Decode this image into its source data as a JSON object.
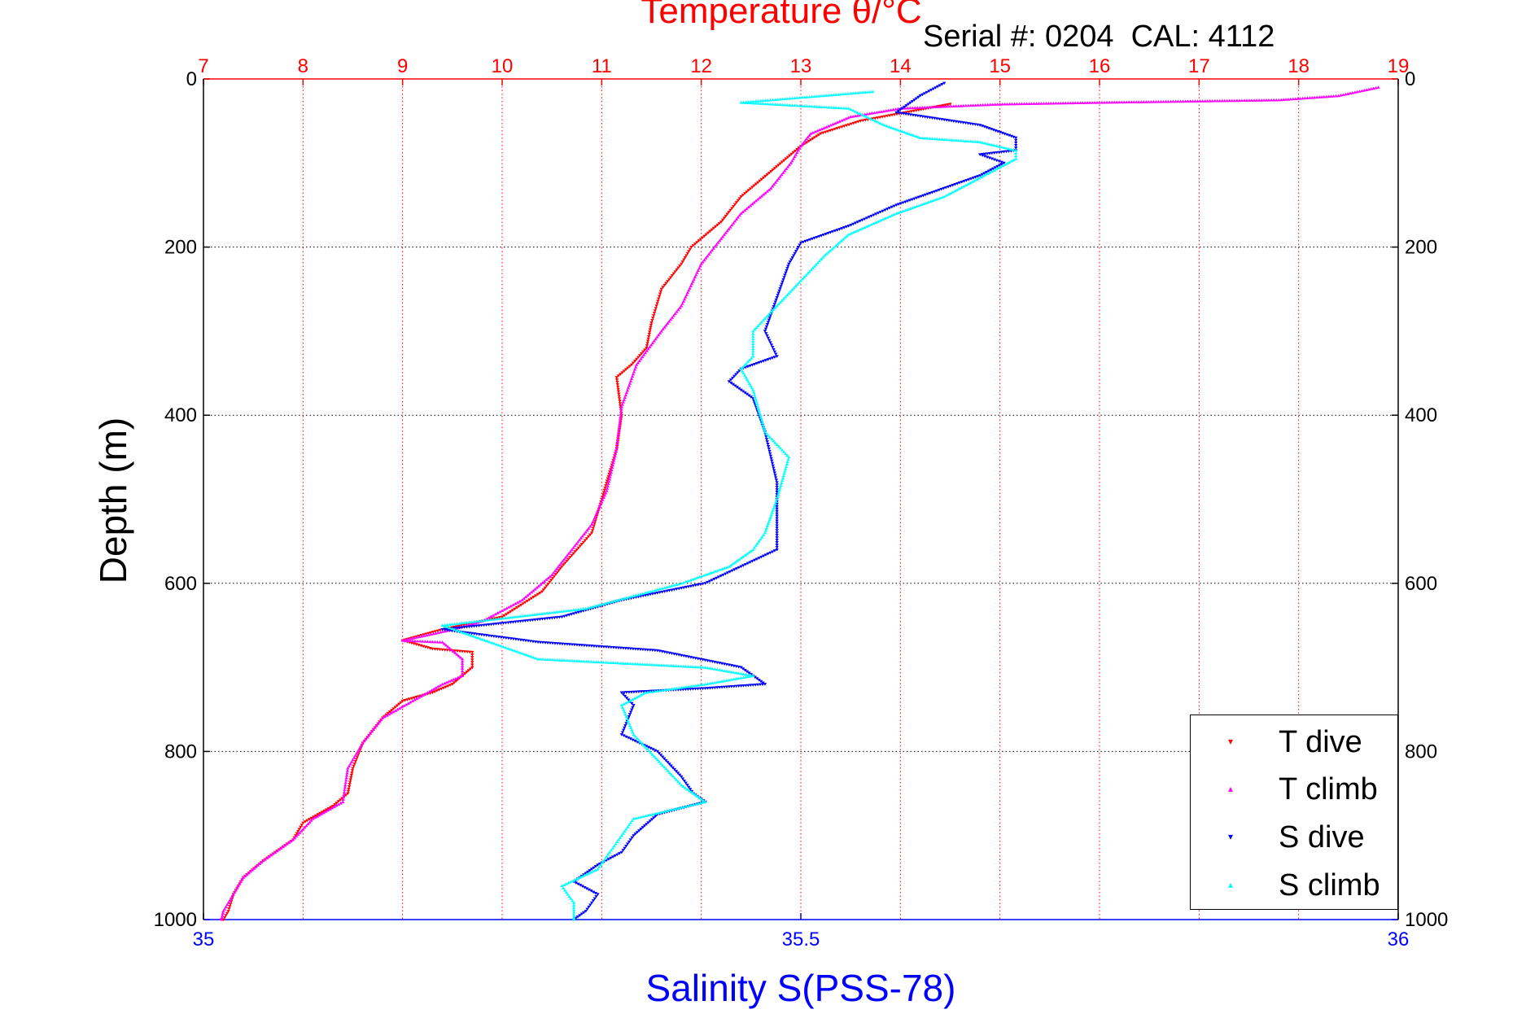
{
  "chart_data": {
    "type": "scatter",
    "title": "Temperature θ/°C",
    "subtitle": "Serial #: 0204  CAL: 4112",
    "ylabel": "Depth (m)",
    "xlabel_bottom": "Salinity S(PSS-78)",
    "y_axis": {
      "range": [
        0,
        1000
      ],
      "reversed": true,
      "ticks": [
        "0",
        "200",
        "400",
        "600",
        "800",
        "1000"
      ],
      "tick_values": [
        0,
        200,
        400,
        600,
        800,
        1000
      ]
    },
    "x_axis_top": {
      "label": "Temperature θ/°C",
      "range": [
        7,
        19
      ],
      "ticks": [
        "7",
        "8",
        "9",
        "10",
        "11",
        "12",
        "13",
        "14",
        "15",
        "16",
        "17",
        "18",
        "19"
      ],
      "tick_values": [
        7,
        8,
        9,
        10,
        11,
        12,
        13,
        14,
        15,
        16,
        17,
        18,
        19
      ],
      "color": "#ff0000"
    },
    "x_axis_bottom": {
      "label": "Salinity S(PSS-78)",
      "range": [
        35,
        36
      ],
      "ticks": [
        "35",
        "35.5",
        "36"
      ],
      "tick_values": [
        35,
        35.5,
        36
      ],
      "color": "#0000ff"
    },
    "grid": true,
    "legend_position": "bottom-right",
    "series": [
      {
        "name": "T dive",
        "axis": "temperature",
        "color": "#ff0000",
        "marker": "triangle-down",
        "points": [
          [
            14.5,
            30
          ],
          [
            13.6,
            50
          ],
          [
            13.2,
            65
          ],
          [
            13.0,
            80
          ],
          [
            12.7,
            110
          ],
          [
            12.4,
            140
          ],
          [
            12.2,
            170
          ],
          [
            11.9,
            200
          ],
          [
            11.8,
            220
          ],
          [
            11.6,
            250
          ],
          [
            11.5,
            290
          ],
          [
            11.45,
            320
          ],
          [
            11.3,
            340
          ],
          [
            11.15,
            355
          ],
          [
            11.2,
            400
          ],
          [
            11.15,
            440
          ],
          [
            11.0,
            500
          ],
          [
            10.9,
            540
          ],
          [
            10.6,
            580
          ],
          [
            10.4,
            610
          ],
          [
            10.0,
            640
          ],
          [
            9.4,
            655
          ],
          [
            9.0,
            668
          ],
          [
            9.3,
            678
          ],
          [
            9.7,
            682
          ],
          [
            9.7,
            700
          ],
          [
            9.5,
            720
          ],
          [
            9.3,
            730
          ],
          [
            9.0,
            740
          ],
          [
            8.8,
            760
          ],
          [
            8.6,
            790
          ],
          [
            8.5,
            820
          ],
          [
            8.45,
            850
          ],
          [
            8.3,
            865
          ],
          [
            8.0,
            885
          ],
          [
            7.9,
            905
          ],
          [
            7.6,
            930
          ],
          [
            7.4,
            950
          ],
          [
            7.3,
            970
          ],
          [
            7.25,
            990
          ],
          [
            7.2,
            1000
          ]
        ]
      },
      {
        "name": "T climb",
        "axis": "temperature",
        "color": "#ff00ff",
        "marker": "triangle-up",
        "points": [
          [
            18.8,
            10
          ],
          [
            18.4,
            20
          ],
          [
            17.8,
            25
          ],
          [
            16.0,
            28
          ],
          [
            15.0,
            30
          ],
          [
            14.0,
            35
          ],
          [
            13.5,
            45
          ],
          [
            13.1,
            65
          ],
          [
            13.0,
            80
          ],
          [
            12.9,
            100
          ],
          [
            12.7,
            130
          ],
          [
            12.4,
            160
          ],
          [
            12.2,
            190
          ],
          [
            12.0,
            220
          ],
          [
            11.8,
            270
          ],
          [
            11.6,
            300
          ],
          [
            11.35,
            340
          ],
          [
            11.2,
            390
          ],
          [
            11.15,
            440
          ],
          [
            11.05,
            490
          ],
          [
            10.9,
            530
          ],
          [
            10.7,
            560
          ],
          [
            10.5,
            590
          ],
          [
            10.2,
            620
          ],
          [
            9.8,
            645
          ],
          [
            9.5,
            655
          ],
          [
            9.0,
            668
          ],
          [
            9.4,
            670
          ],
          [
            9.6,
            690
          ],
          [
            9.6,
            710
          ],
          [
            9.4,
            720
          ],
          [
            9.1,
            740
          ],
          [
            8.8,
            760
          ],
          [
            8.6,
            790
          ],
          [
            8.45,
            820
          ],
          [
            8.4,
            860
          ],
          [
            8.1,
            880
          ],
          [
            7.9,
            905
          ],
          [
            7.6,
            930
          ],
          [
            7.4,
            950
          ],
          [
            7.3,
            970
          ],
          [
            7.2,
            990
          ],
          [
            7.18,
            1000
          ]
        ]
      },
      {
        "name": "S dive",
        "axis": "salinity",
        "color": "#0000ff",
        "marker": "triangle-down",
        "points": [
          [
            35.62,
            5
          ],
          [
            35.6,
            20
          ],
          [
            35.58,
            40
          ],
          [
            35.65,
            55
          ],
          [
            35.68,
            70
          ],
          [
            35.68,
            85
          ],
          [
            35.65,
            90
          ],
          [
            35.67,
            100
          ],
          [
            35.65,
            115
          ],
          [
            35.61,
            135
          ],
          [
            35.58,
            150
          ],
          [
            35.54,
            175
          ],
          [
            35.5,
            195
          ],
          [
            35.49,
            220
          ],
          [
            35.48,
            260
          ],
          [
            35.47,
            300
          ],
          [
            35.48,
            330
          ],
          [
            35.45,
            345
          ],
          [
            35.44,
            360
          ],
          [
            35.46,
            380
          ],
          [
            35.47,
            420
          ],
          [
            35.48,
            480
          ],
          [
            35.48,
            520
          ],
          [
            35.48,
            560
          ],
          [
            35.45,
            580
          ],
          [
            35.42,
            600
          ],
          [
            35.35,
            620
          ],
          [
            35.3,
            640
          ],
          [
            35.2,
            655
          ],
          [
            35.28,
            670
          ],
          [
            35.38,
            680
          ],
          [
            35.45,
            700
          ],
          [
            35.47,
            720
          ],
          [
            35.42,
            725
          ],
          [
            35.35,
            730
          ],
          [
            35.36,
            745
          ],
          [
            35.35,
            780
          ],
          [
            35.38,
            800
          ],
          [
            35.4,
            830
          ],
          [
            35.41,
            850
          ],
          [
            35.42,
            860
          ],
          [
            35.38,
            875
          ],
          [
            35.36,
            900
          ],
          [
            35.35,
            920
          ],
          [
            35.33,
            935
          ],
          [
            35.31,
            955
          ],
          [
            35.33,
            970
          ],
          [
            35.32,
            990
          ],
          [
            35.31,
            1000
          ]
        ]
      },
      {
        "name": "S climb",
        "axis": "salinity",
        "color": "#00ffff",
        "marker": "triangle-up",
        "points": [
          [
            35.56,
            15
          ],
          [
            35.45,
            28
          ],
          [
            35.54,
            35
          ],
          [
            35.57,
            55
          ],
          [
            35.6,
            70
          ],
          [
            35.65,
            75
          ],
          [
            35.68,
            85
          ],
          [
            35.68,
            95
          ],
          [
            35.66,
            110
          ],
          [
            35.62,
            140
          ],
          [
            35.58,
            160
          ],
          [
            35.54,
            185
          ],
          [
            35.52,
            210
          ],
          [
            35.5,
            240
          ],
          [
            35.48,
            270
          ],
          [
            35.46,
            300
          ],
          [
            35.46,
            330
          ],
          [
            35.45,
            345
          ],
          [
            35.46,
            370
          ],
          [
            35.47,
            420
          ],
          [
            35.49,
            450
          ],
          [
            35.48,
            500
          ],
          [
            35.47,
            540
          ],
          [
            35.46,
            560
          ],
          [
            35.44,
            580
          ],
          [
            35.4,
            600
          ],
          [
            35.32,
            630
          ],
          [
            35.2,
            650
          ],
          [
            35.22,
            660
          ],
          [
            35.28,
            690
          ],
          [
            35.42,
            700
          ],
          [
            35.46,
            710
          ],
          [
            35.42,
            720
          ],
          [
            35.37,
            730
          ],
          [
            35.35,
            745
          ],
          [
            35.36,
            780
          ],
          [
            35.38,
            810
          ],
          [
            35.4,
            840
          ],
          [
            35.42,
            860
          ],
          [
            35.36,
            880
          ],
          [
            35.35,
            900
          ],
          [
            35.34,
            920
          ],
          [
            35.33,
            940
          ],
          [
            35.3,
            960
          ],
          [
            35.31,
            980
          ],
          [
            35.31,
            1000
          ]
        ]
      }
    ]
  },
  "legend": {
    "items": [
      {
        "label": "T dive",
        "marker": "▾",
        "color": "#ff0000"
      },
      {
        "label": "T climb",
        "marker": "▴",
        "color": "#ff00ff"
      },
      {
        "label": "S dive",
        "marker": "▾",
        "color": "#0000ff"
      },
      {
        "label": "S climb",
        "marker": "▴",
        "color": "#00ffff"
      }
    ]
  }
}
